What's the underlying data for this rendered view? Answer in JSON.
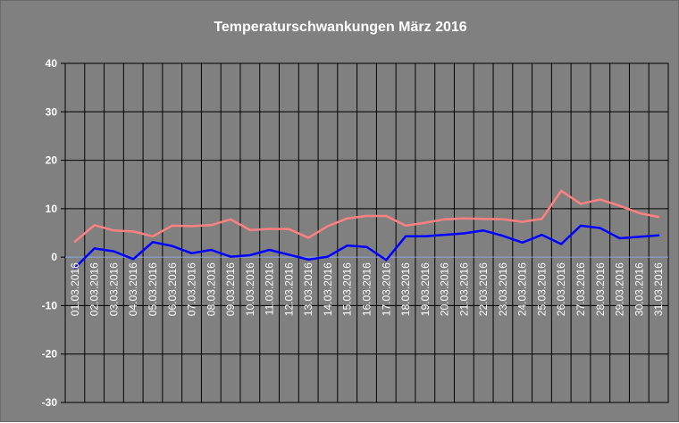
{
  "chart_data": {
    "type": "line",
    "title": "Temperaturschwankungen März 2016",
    "xlabel": "",
    "ylabel": "",
    "ylim": [
      -30,
      40
    ],
    "yticks": [
      40,
      30,
      20,
      10,
      0,
      -10,
      -20,
      -30
    ],
    "grid": true,
    "legend": "none",
    "categories": [
      "01.03.2016",
      "02.03.2016",
      "03.03.2016",
      "04.03.2016",
      "05.03.2016",
      "06.03.2016",
      "07.03.2016",
      "08.03.2016",
      "09.03.2016",
      "10.03.2016",
      "11.03.2016",
      "12.03.2016",
      "13.03.2016",
      "14.03.2016",
      "15.03.2016",
      "16.03.2016",
      "17.03.2016",
      "18.03.2016",
      "19.03.2016",
      "20.03.2016",
      "21.03.2016",
      "22.03.2016",
      "23.03.2016",
      "24.03.2016",
      "25.03.2016",
      "26.03.2016",
      "27.03.2016",
      "28.03.2016",
      "29.03.2016",
      "30.03.2016",
      "31.03.2016"
    ],
    "series": [
      {
        "color": "#ff8080",
        "values": [
          3.2,
          6.6,
          5.5,
          5.3,
          4.3,
          6.5,
          6.4,
          6.6,
          7.8,
          5.6,
          5.8,
          5.8,
          4.0,
          6.4,
          8.0,
          8.5,
          8.5,
          6.5,
          7.1,
          7.8,
          8.0,
          7.9,
          7.8,
          7.3,
          7.9,
          13.7,
          11.0,
          11.9,
          10.6,
          9.1,
          8.3
        ]
      },
      {
        "color": "#0000ff",
        "values": [
          -2.2,
          1.8,
          1.2,
          -0.4,
          3.1,
          2.3,
          0.8,
          1.5,
          0.1,
          0.4,
          1.5,
          0.5,
          -0.5,
          0.1,
          2.4,
          2.1,
          -0.6,
          4.3,
          4.3,
          4.6,
          4.9,
          5.5,
          4.4,
          3.0,
          4.6,
          2.7,
          6.5,
          6.0,
          3.9,
          4.2,
          4.5
        ]
      }
    ]
  }
}
